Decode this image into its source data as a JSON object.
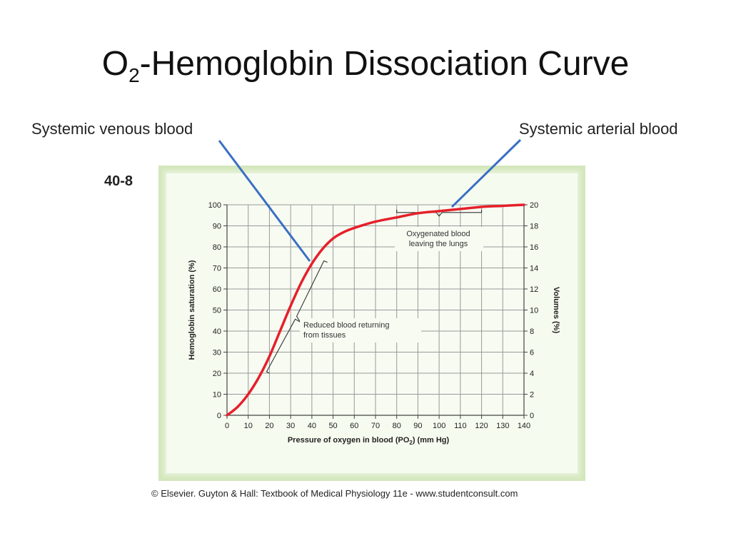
{
  "slide": {
    "title_main": "O",
    "title_sub": "2",
    "title_rest": "-Hemoglobin Dissociation Curve",
    "callout_venous": "Systemic venous blood",
    "callout_arterial": "Systemic arterial blood",
    "figure_number": "40-8",
    "credit": "© Elsevier. Guyton & Hall: Textbook of Medical Physiology 11e - www.studentconsult.com"
  },
  "colors": {
    "curve": "#e5202a",
    "callout_line": "#3a6fc4",
    "grid": "#9a9a9a",
    "panel_bg": "#d3e7bb"
  },
  "chart_data": {
    "type": "line",
    "xlabel_main": "Pressure of oxygen in blood (PO",
    "xlabel_sub": "2",
    "xlabel_end": ") (mm Hg)",
    "ylabel": "Hemoglobin saturation (%)",
    "y2label": "Volumes (%)",
    "xlim": [
      0,
      140
    ],
    "ylim": [
      0,
      100
    ],
    "y2lim": [
      0,
      20
    ],
    "xticks": [
      0,
      10,
      20,
      30,
      40,
      50,
      60,
      70,
      80,
      90,
      100,
      110,
      120,
      130,
      140
    ],
    "yticks": [
      0,
      10,
      20,
      30,
      40,
      50,
      60,
      70,
      80,
      90,
      100
    ],
    "y2ticks": [
      0,
      2,
      4,
      6,
      8,
      10,
      12,
      14,
      16,
      18,
      20
    ],
    "grid": true,
    "series": [
      {
        "x": [
          0,
          5,
          10,
          15,
          20,
          25,
          30,
          35,
          40,
          45,
          50,
          55,
          60,
          70,
          80,
          90,
          100,
          110,
          120,
          130,
          140
        ],
        "values": [
          0,
          4,
          10,
          18,
          28,
          40,
          52,
          63,
          72,
          79,
          84,
          87,
          89,
          92,
          94,
          96,
          97,
          98,
          99,
          99.5,
          100
        ]
      }
    ],
    "annotations": [
      {
        "lines": [
          "Oxygenated blood",
          "leaving the lungs"
        ],
        "x_range": [
          80,
          120
        ],
        "y": 97
      },
      {
        "lines": [
          "Reduced blood returning",
          "from tissues"
        ],
        "x_range": [
          20,
          45
        ],
        "y_range": [
          20,
          72
        ]
      }
    ]
  }
}
